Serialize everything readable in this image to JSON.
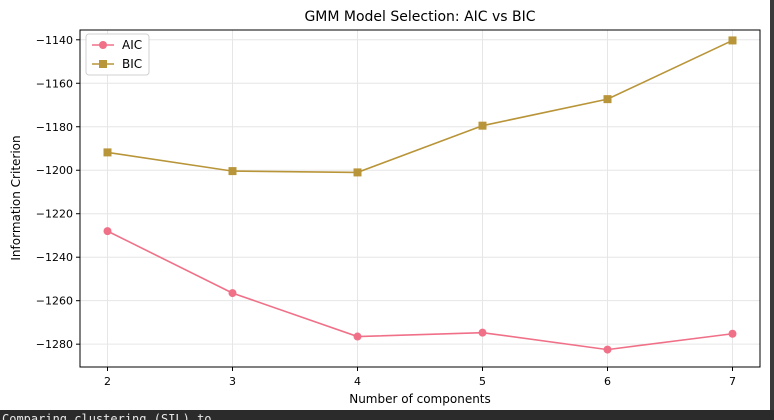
{
  "chart_data": {
    "type": "line",
    "title": "GMM Model Selection: AIC vs BIC",
    "xlabel": "Number of components",
    "ylabel": "Information Criterion",
    "x": [
      2,
      3,
      4,
      5,
      6,
      7
    ],
    "xlim": [
      1.78,
      7.22
    ],
    "ylim": [
      -1290.5,
      -1135.5
    ],
    "xticks": [
      "2",
      "3",
      "4",
      "5",
      "6",
      "7"
    ],
    "yticks": [
      -1140,
      -1160,
      -1180,
      -1200,
      -1220,
      -1240,
      -1260,
      -1280
    ],
    "ytick_labels": [
      "−1140",
      "−1160",
      "−1180",
      "−1200",
      "−1220",
      "−1240",
      "−1260",
      "−1280"
    ],
    "grid": true,
    "legend": "top-left",
    "series": [
      {
        "name": "AIC",
        "marker": "circle",
        "color": "#f07088",
        "values": [
          -1228,
          -1256.5,
          -1276.5,
          -1274.7,
          -1282.5,
          -1275.2
        ]
      },
      {
        "name": "BIC",
        "marker": "square",
        "color": "#b99539",
        "values": [
          -1191.8,
          -1200.4,
          -1201,
          -1179.5,
          -1167.3,
          -1140.3
        ]
      }
    ]
  },
  "footer_text": "Comparing clustering (SIL) to"
}
